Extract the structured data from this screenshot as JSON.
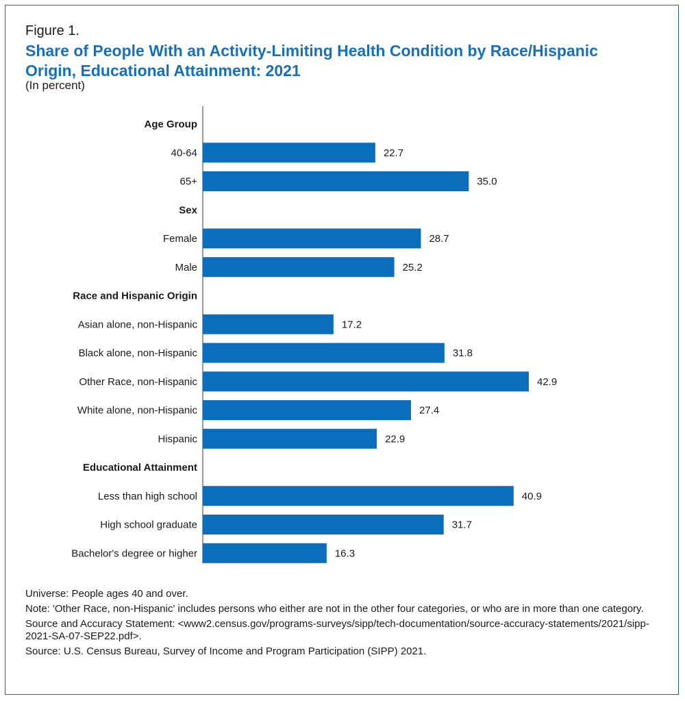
{
  "figure_label": "Figure 1.",
  "title": "Share of People With an Activity-Limiting Health Condition by Race/Hispanic Origin, Educational Attainment: 2021",
  "subtitle": "(In percent)",
  "colors": {
    "bar": "#0a6ebd",
    "title": "#1570bb",
    "border": "#1f5f9e"
  },
  "chart_data": {
    "type": "bar",
    "orientation": "horizontal",
    "title": "Share of People With an Activity-Limiting Health Condition by Race/Hispanic Origin, Educational Attainment: 2021",
    "xlabel": "",
    "ylabel": "",
    "xlim": [
      0,
      50
    ],
    "grid": false,
    "groups": [
      {
        "name": "Age Group",
        "categories": [
          "40-64",
          "65+"
        ],
        "values": [
          22.7,
          35.0
        ],
        "labels": [
          "22.7",
          "35.0"
        ]
      },
      {
        "name": "Sex",
        "categories": [
          "Female",
          "Male"
        ],
        "values": [
          28.7,
          25.2
        ],
        "labels": [
          "28.7",
          "25.2"
        ]
      },
      {
        "name": "Race and Hispanic Origin",
        "categories": [
          "Asian alone, non-Hispanic",
          "Black alone, non-Hispanic",
          "Other Race, non-Hispanic",
          "White alone, non-Hispanic",
          "Hispanic"
        ],
        "values": [
          17.2,
          31.8,
          42.9,
          27.4,
          22.9
        ],
        "labels": [
          "17.2",
          "31.8",
          "42.9",
          "27.4",
          "22.9"
        ]
      },
      {
        "name": "Educational Attainment",
        "categories": [
          "Less than high school",
          "High school graduate",
          "Bachelor's degree or higher"
        ],
        "values": [
          40.9,
          31.7,
          16.3
        ],
        "labels": [
          "40.9",
          "31.7",
          "16.3"
        ]
      }
    ]
  },
  "notes": {
    "universe": "Universe: People ages 40 and over.",
    "note": "Note: 'Other Race, non-Hispanic' includes persons who either are not in the other four categories, or who are in more than one category.",
    "accuracy": "Source and Accuracy Statement: <www2.census.gov/programs-surveys/sipp/tech-documentation/source-accuracy-statements/2021/sipp-2021-SA-07-SEP22.pdf>.",
    "source": "Source: U.S. Census Bureau, Survey of Income and Program Participation (SIPP) 2021."
  }
}
